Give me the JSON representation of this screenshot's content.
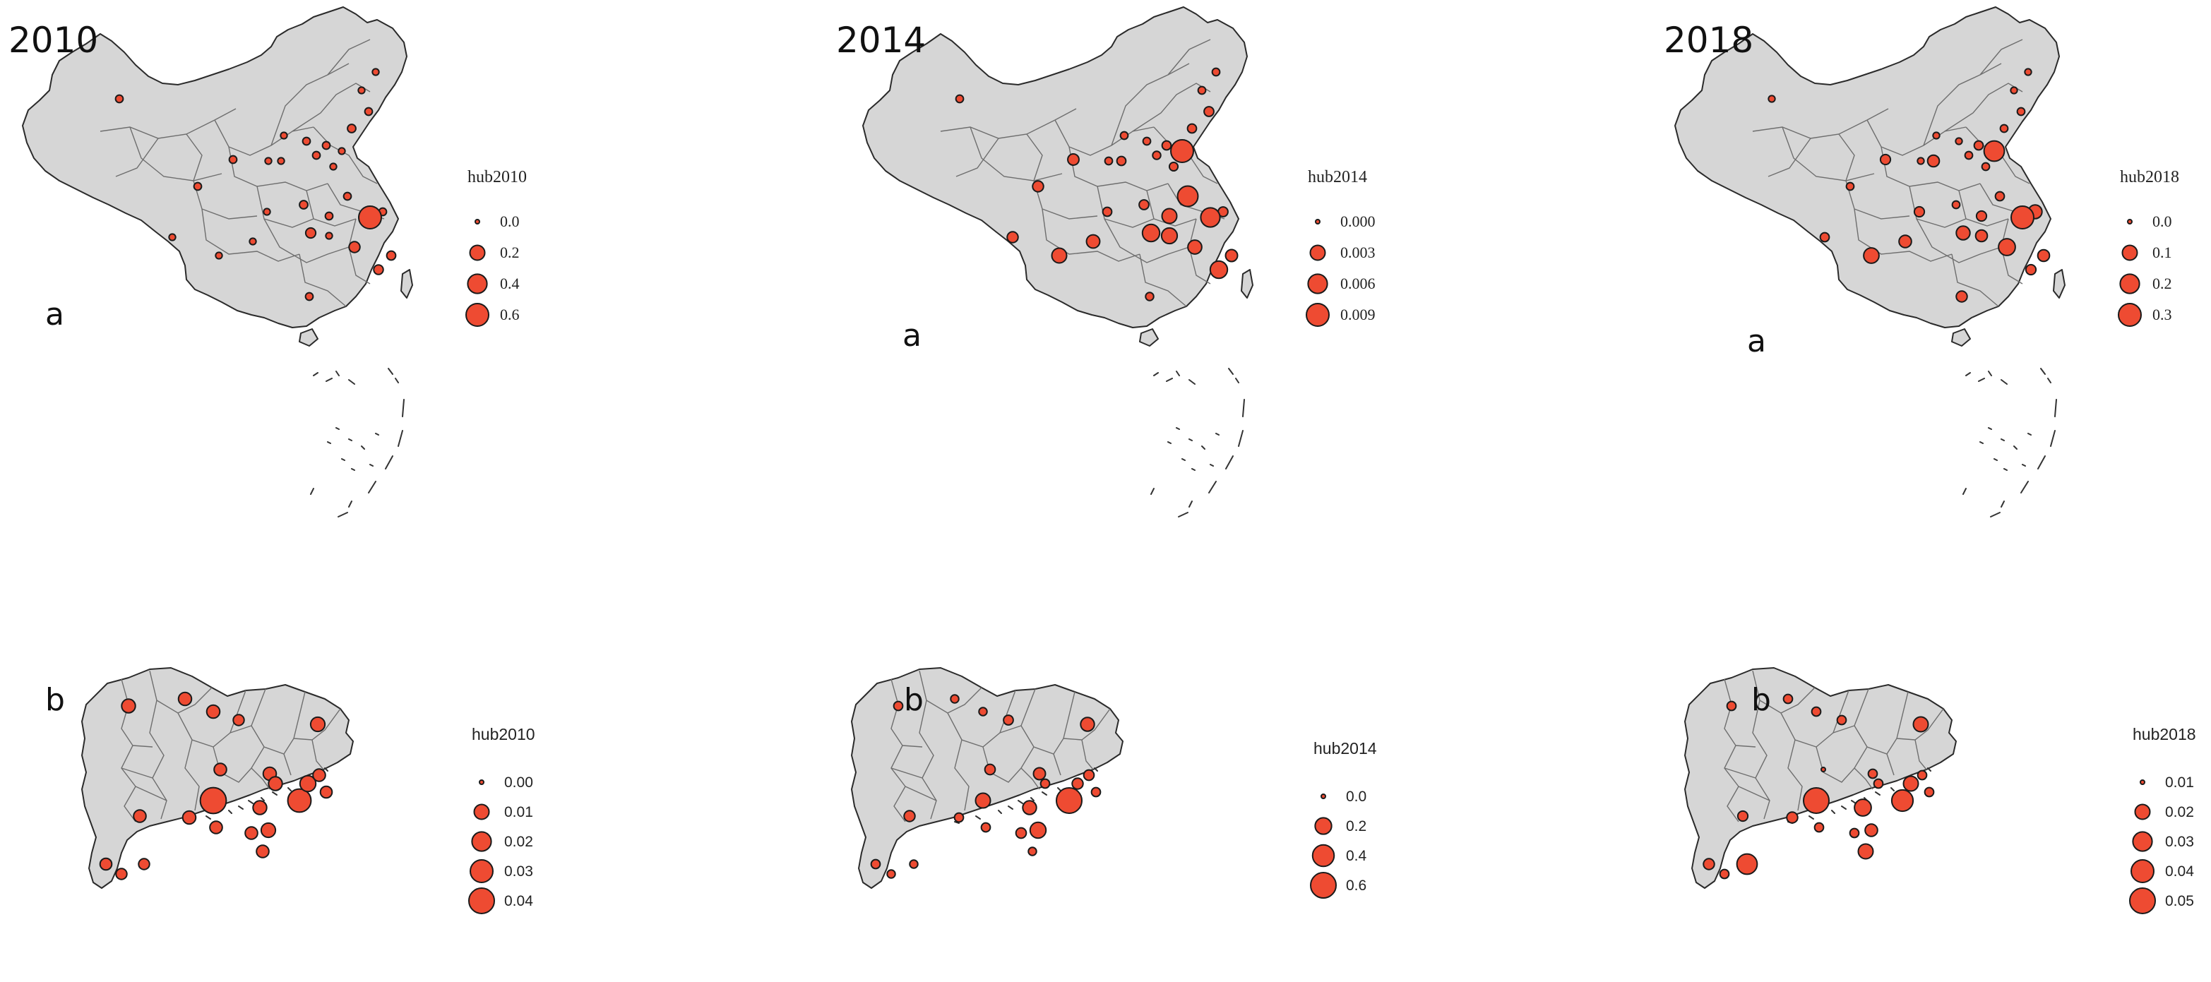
{
  "panels_top": [
    {
      "year": "2010",
      "tag": "a",
      "legend_title": "hub2010",
      "legend": [
        {
          "label": "0.0",
          "value": 0.0
        },
        {
          "label": "0.2",
          "value": 0.2
        },
        {
          "label": "0.4",
          "value": 0.4
        },
        {
          "label": "0.6",
          "value": 0.6
        }
      ],
      "points": [
        0.02,
        0.01,
        0.01,
        0.02,
        0.03,
        0.01,
        0.02,
        0.02,
        0.02,
        0.01,
        0.01,
        0.01,
        0.02,
        0.01,
        0.02,
        0.02,
        0.03,
        0.01,
        0.02,
        0.06,
        0.02,
        0.01,
        0.01,
        0.01,
        0.08,
        0.6,
        0.04,
        0.01,
        0.05,
        0.02
      ]
    },
    {
      "year": "2014",
      "tag": "a",
      "legend_title": "hub2014",
      "legend": [
        {
          "label": "0.000",
          "value": 0.0
        },
        {
          "label": "0.003",
          "value": 0.003
        },
        {
          "label": "0.006",
          "value": 0.006
        },
        {
          "label": "0.009",
          "value": 0.009
        }
      ],
      "points": [
        0.0003,
        0.0003,
        0.0003,
        0.0008,
        0.0006,
        0.0003,
        0.0003,
        0.0006,
        0.0004,
        0.0003,
        0.0005,
        0.009,
        0.0013,
        0.0006,
        0.0012,
        0.007,
        0.0008,
        0.0006,
        0.003,
        0.0045,
        0.0008,
        0.0012,
        0.0035,
        0.0022,
        0.0025,
        0.006,
        0.0016,
        0.003,
        0.0045,
        0.0004
      ]
    },
    {
      "year": "2018",
      "tag": "a",
      "legend_title": "hub2018",
      "legend": [
        {
          "label": "0.0",
          "value": 0.0
        },
        {
          "label": "0.1",
          "value": 0.1
        },
        {
          "label": "0.2",
          "value": 0.2
        },
        {
          "label": "0.3",
          "value": 0.3
        }
      ],
      "points": [
        0.005,
        0.005,
        0.005,
        0.01,
        0.01,
        0.005,
        0.005,
        0.02,
        0.01,
        0.005,
        0.01,
        0.23,
        0.03,
        0.05,
        0.01,
        0.02,
        0.01,
        0.03,
        0.03,
        0.08,
        0.08,
        0.02,
        0.05,
        0.06,
        0.14,
        0.3,
        0.05,
        0.11,
        0.03,
        0.04
      ]
    }
  ],
  "panels_bottom": [
    {
      "tag": "b",
      "legend_title": "hub2010",
      "legend": [
        {
          "label": "0.00",
          "value": 0.0
        },
        {
          "label": "0.01",
          "value": 0.01
        },
        {
          "label": "0.02",
          "value": 0.02
        },
        {
          "label": "0.03",
          "value": 0.03
        },
        {
          "label": "0.04",
          "value": 0.04
        }
      ],
      "points": [
        0.008,
        0.007,
        0.007,
        0.004,
        0.009,
        0.006,
        0.007,
        0.042,
        0.032,
        0.006,
        0.007,
        0.008,
        0.009,
        0.006,
        0.006,
        0.008,
        0.012,
        0.006,
        0.005,
        0.006,
        0.004,
        0.004,
        0.005
      ]
    },
    {
      "tag": "b",
      "legend_title": "hub2014",
      "legend": [
        {
          "label": "0.0",
          "value": 0.0
        },
        {
          "label": "0.2",
          "value": 0.2
        },
        {
          "label": "0.4",
          "value": 0.4
        },
        {
          "label": "0.6",
          "value": 0.6
        }
      ],
      "points": [
        0.03,
        0.02,
        0.02,
        0.04,
        0.12,
        0.05,
        0.08,
        0.15,
        0.6,
        0.06,
        0.03,
        0.12,
        0.18,
        0.05,
        0.03,
        0.03,
        0.06,
        0.05,
        0.03,
        0.02,
        0.02,
        0.02,
        0.03
      ]
    },
    {
      "tag": "b",
      "legend_title": "hub2018",
      "legend": [
        {
          "label": "0.01",
          "value": 0.01
        },
        {
          "label": "0.02",
          "value": 0.02
        },
        {
          "label": "0.03",
          "value": 0.03
        },
        {
          "label": "0.04",
          "value": 0.04
        },
        {
          "label": "0.05",
          "value": 0.05
        }
      ],
      "points": [
        0.012,
        0.012,
        0.012,
        0.012,
        0.02,
        0.01,
        0.012,
        0.05,
        0.036,
        0.013,
        0.014,
        0.024,
        0.016,
        0.012,
        0.012,
        0.012,
        0.02,
        0.012,
        0.012,
        0.02,
        0.033,
        0.012,
        0.014
      ]
    }
  ],
  "colors": {
    "bubble_fill": "#ee4b32",
    "bubble_stroke": "#1a1a1a",
    "land_fill": "#d6d6d6",
    "border": "#2a2a2a",
    "inner_border": "#6e6e6e"
  }
}
